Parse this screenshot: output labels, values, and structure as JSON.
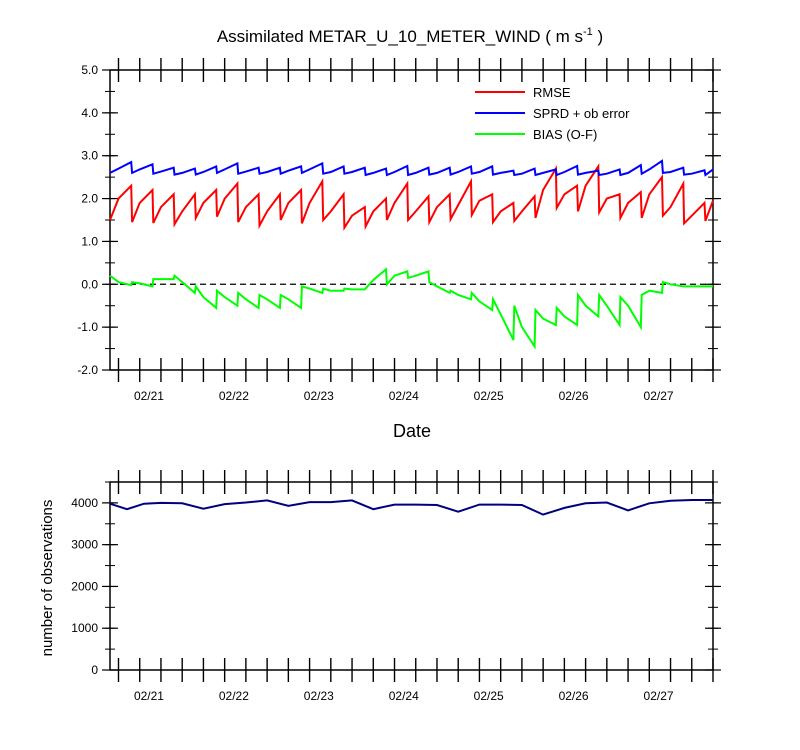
{
  "chart_data": [
    {
      "type": "line",
      "title_main": "Assimilated METAR_U_10_METER_WIND ( m s",
      "title_sup": "-1",
      "title_end": " )",
      "xlabel": "Date",
      "ylabel": "",
      "ylim": [
        -2.0,
        5.0
      ],
      "xlim": [
        20.4,
        27.5
      ],
      "y_tick_labels": [
        "-2.0",
        "-1.0",
        "0.0",
        "1.0",
        "2.0",
        "3.0",
        "4.0",
        "5.0"
      ],
      "x_tick_labels": [
        "02/21",
        "02/22",
        "02/23",
        "02/24",
        "02/25",
        "02/26",
        "02/27"
      ],
      "zero_line": "dashed",
      "legend_position": "top-right",
      "series": [
        {
          "name": "RMSE",
          "color": "#ff0000",
          "x": [
            20.4,
            20.5,
            20.65,
            20.66,
            20.75,
            20.9,
            20.91,
            21.0,
            21.15,
            21.16,
            21.25,
            21.4,
            21.41,
            21.5,
            21.65,
            21.66,
            21.75,
            21.9,
            21.91,
            22.0,
            22.15,
            22.16,
            22.25,
            22.4,
            22.41,
            22.5,
            22.65,
            22.66,
            22.75,
            22.9,
            22.91,
            23.0,
            23.15,
            23.16,
            23.25,
            23.4,
            23.41,
            23.5,
            23.65,
            23.66,
            23.75,
            23.9,
            23.91,
            24.0,
            24.15,
            24.16,
            24.25,
            24.4,
            24.41,
            24.5,
            24.65,
            24.66,
            24.75,
            24.9,
            24.91,
            25.0,
            25.15,
            25.16,
            25.25,
            25.4,
            25.41,
            25.5,
            25.65,
            25.66,
            25.75,
            25.9,
            25.91,
            26.0,
            26.15,
            26.16,
            26.25,
            26.4,
            26.41,
            26.5,
            26.65,
            26.66,
            26.75,
            26.9,
            26.91,
            27.0,
            27.15,
            27.16,
            27.25,
            27.4,
            27.41,
            27.5
          ],
          "values": [
            1.5,
            2.0,
            2.3,
            1.45,
            1.9,
            2.2,
            1.43,
            1.8,
            2.1,
            1.4,
            1.7,
            2.1,
            1.55,
            1.9,
            2.2,
            1.58,
            2.0,
            2.35,
            1.45,
            1.8,
            2.1,
            1.37,
            1.7,
            2.1,
            1.5,
            1.9,
            2.2,
            1.42,
            1.9,
            2.4,
            1.5,
            1.7,
            2.1,
            1.32,
            1.6,
            1.8,
            1.35,
            1.7,
            2.0,
            1.5,
            1.9,
            2.35,
            1.5,
            1.7,
            2.05,
            1.45,
            1.8,
            2.1,
            1.52,
            1.85,
            2.4,
            1.62,
            1.95,
            2.1,
            1.45,
            1.7,
            1.9,
            1.48,
            1.7,
            2.05,
            1.55,
            2.2,
            2.7,
            1.78,
            2.1,
            2.3,
            1.7,
            2.3,
            2.75,
            1.68,
            2.0,
            2.1,
            1.55,
            1.9,
            2.15,
            1.55,
            2.1,
            2.5,
            1.6,
            1.8,
            2.35,
            1.42,
            1.6,
            1.9,
            1.48,
            1.95
          ]
        },
        {
          "name": "SPRD + ob error",
          "color": "#0000ff",
          "x": [
            20.4,
            20.5,
            20.65,
            20.66,
            20.75,
            20.9,
            20.91,
            21.0,
            21.15,
            21.16,
            21.25,
            21.4,
            21.41,
            21.5,
            21.65,
            21.66,
            21.75,
            21.9,
            21.91,
            22.0,
            22.15,
            22.16,
            22.25,
            22.4,
            22.41,
            22.5,
            22.65,
            22.66,
            22.75,
            22.9,
            22.91,
            23.0,
            23.15,
            23.16,
            23.25,
            23.4,
            23.41,
            23.5,
            23.65,
            23.66,
            23.75,
            23.9,
            23.91,
            24.0,
            24.15,
            24.16,
            24.25,
            24.4,
            24.41,
            24.5,
            24.65,
            24.66,
            24.75,
            24.9,
            24.91,
            25.0,
            25.15,
            25.16,
            25.25,
            25.4,
            25.41,
            25.5,
            25.65,
            25.66,
            25.75,
            25.9,
            25.91,
            26.0,
            26.15,
            26.16,
            26.25,
            26.4,
            26.41,
            26.5,
            26.65,
            26.66,
            26.75,
            26.9,
            26.91,
            27.0,
            27.15,
            27.16,
            27.25,
            27.4,
            27.41,
            27.5
          ],
          "values": [
            2.6,
            2.7,
            2.85,
            2.6,
            2.68,
            2.8,
            2.58,
            2.63,
            2.72,
            2.56,
            2.6,
            2.7,
            2.56,
            2.62,
            2.75,
            2.6,
            2.68,
            2.82,
            2.58,
            2.63,
            2.72,
            2.58,
            2.62,
            2.72,
            2.58,
            2.65,
            2.75,
            2.6,
            2.68,
            2.82,
            2.58,
            2.62,
            2.75,
            2.58,
            2.62,
            2.72,
            2.55,
            2.6,
            2.7,
            2.55,
            2.62,
            2.76,
            2.55,
            2.6,
            2.72,
            2.56,
            2.6,
            2.72,
            2.56,
            2.62,
            2.75,
            2.58,
            2.62,
            2.75,
            2.56,
            2.6,
            2.65,
            2.55,
            2.58,
            2.7,
            2.55,
            2.6,
            2.68,
            2.55,
            2.62,
            2.76,
            2.56,
            2.6,
            2.65,
            2.55,
            2.58,
            2.68,
            2.55,
            2.6,
            2.78,
            2.58,
            2.68,
            2.88,
            2.6,
            2.62,
            2.72,
            2.56,
            2.58,
            2.66,
            2.55,
            2.68
          ]
        },
        {
          "name": "BIAS (O-F)",
          "color": "#00ff00",
          "x": [
            20.4,
            20.5,
            20.65,
            20.66,
            20.75,
            20.9,
            20.91,
            21.0,
            21.15,
            21.16,
            21.25,
            21.4,
            21.41,
            21.5,
            21.65,
            21.66,
            21.75,
            21.9,
            21.91,
            22.0,
            22.15,
            22.16,
            22.25,
            22.4,
            22.41,
            22.5,
            22.65,
            22.66,
            22.75,
            22.9,
            22.91,
            23.0,
            23.15,
            23.16,
            23.25,
            23.4,
            23.41,
            23.5,
            23.65,
            23.66,
            23.75,
            23.9,
            23.91,
            24.0,
            24.15,
            24.16,
            24.25,
            24.4,
            24.41,
            24.5,
            24.65,
            24.66,
            24.75,
            24.9,
            24.91,
            25.0,
            25.15,
            25.16,
            25.25,
            25.4,
            25.41,
            25.5,
            25.65,
            25.66,
            25.75,
            25.9,
            25.91,
            26.0,
            26.15,
            26.16,
            26.25,
            26.4,
            26.41,
            26.5,
            26.65,
            26.66,
            26.75,
            26.9,
            26.91,
            27.0,
            27.15,
            27.16,
            27.25,
            27.4,
            27.41,
            27.5
          ],
          "values": [
            0.2,
            0.05,
            -0.02,
            0.05,
            0.02,
            -0.05,
            0.12,
            0.12,
            0.12,
            0.2,
            0.05,
            -0.2,
            -0.05,
            -0.3,
            -0.55,
            -0.15,
            -0.3,
            -0.5,
            -0.2,
            -0.35,
            -0.55,
            -0.25,
            -0.35,
            -0.55,
            -0.25,
            -0.35,
            -0.55,
            -0.05,
            -0.1,
            -0.2,
            -0.1,
            -0.15,
            -0.15,
            -0.1,
            -0.12,
            -0.12,
            -0.1,
            0.1,
            0.35,
            0.0,
            0.2,
            0.3,
            0.15,
            0.2,
            0.3,
            0.05,
            -0.05,
            -0.2,
            -0.15,
            -0.25,
            -0.35,
            -0.2,
            -0.4,
            -0.6,
            -0.35,
            -0.7,
            -1.3,
            -0.5,
            -1.0,
            -1.45,
            -0.6,
            -0.8,
            -0.95,
            -0.55,
            -0.75,
            -0.95,
            -0.25,
            -0.5,
            -0.75,
            -0.25,
            -0.5,
            -0.95,
            -0.3,
            -0.5,
            -1.0,
            -0.25,
            -0.15,
            -0.2,
            0.05,
            0.0,
            -0.05,
            -0.05,
            -0.05,
            -0.05,
            -0.05,
            -0.05
          ]
        }
      ]
    },
    {
      "type": "line",
      "xlabel": "",
      "ylabel": "number of observations",
      "ylim": [
        0,
        4500
      ],
      "xlim": [
        20.4,
        27.5
      ],
      "y_tick_labels": [
        "0",
        "1000",
        "2000",
        "3000",
        "4000"
      ],
      "x_tick_labels": [
        "02/21",
        "02/22",
        "02/23",
        "02/24",
        "02/25",
        "02/26",
        "02/27"
      ],
      "series": [
        {
          "name": "",
          "color": "#000080",
          "x": [
            20.4,
            20.6,
            20.8,
            21.0,
            21.25,
            21.5,
            21.75,
            22.0,
            22.25,
            22.5,
            22.75,
            23.0,
            23.25,
            23.5,
            23.75,
            24.0,
            24.25,
            24.5,
            24.75,
            25.0,
            25.25,
            25.5,
            25.75,
            26.0,
            26.25,
            26.5,
            26.75,
            27.0,
            27.25,
            27.5
          ],
          "values": [
            3980,
            3850,
            3980,
            4000,
            3990,
            3860,
            3970,
            4010,
            4060,
            3930,
            4020,
            4020,
            4060,
            3850,
            3960,
            3960,
            3950,
            3790,
            3960,
            3960,
            3950,
            3720,
            3880,
            3990,
            4010,
            3820,
            3990,
            4050,
            4070,
            4070
          ]
        }
      ]
    }
  ]
}
